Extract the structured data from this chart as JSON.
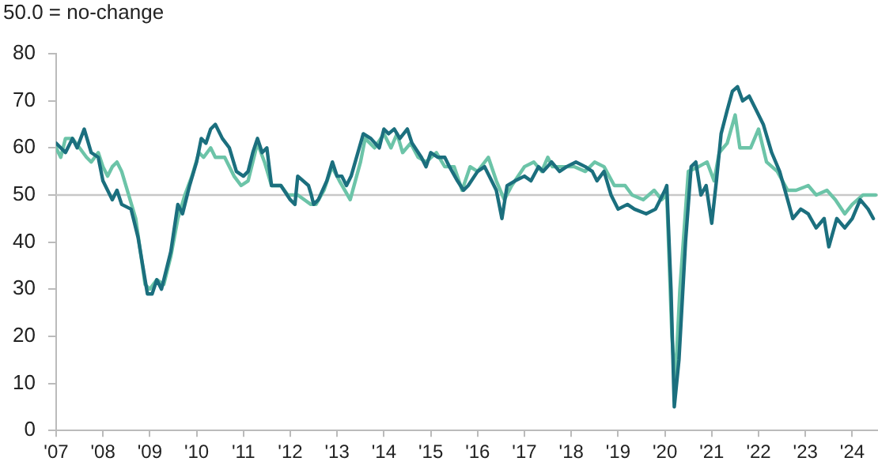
{
  "chart_data": {
    "type": "line",
    "annotations": [
      "50.0 = no-change"
    ],
    "xlim": [
      2007,
      2024.55
    ],
    "xticks": [
      {
        "value": 2007,
        "label": "'07"
      },
      {
        "value": 2008,
        "label": "'08"
      },
      {
        "value": 2009,
        "label": "'09"
      },
      {
        "value": 2010,
        "label": "'10"
      },
      {
        "value": 2011,
        "label": "'11"
      },
      {
        "value": 2012,
        "label": "'12"
      },
      {
        "value": 2013,
        "label": "'13"
      },
      {
        "value": 2014,
        "label": "'14"
      },
      {
        "value": 2015,
        "label": "'15"
      },
      {
        "value": 2016,
        "label": "'16"
      },
      {
        "value": 2017,
        "label": "'17"
      },
      {
        "value": 2018,
        "label": "'18"
      },
      {
        "value": 2019,
        "label": "'19"
      },
      {
        "value": 2020,
        "label": "'20"
      },
      {
        "value": 2021,
        "label": "'21"
      },
      {
        "value": 2022,
        "label": "'22"
      },
      {
        "value": 2023,
        "label": "'23"
      },
      {
        "value": 2024,
        "label": "'24"
      }
    ],
    "ylim": [
      0,
      80
    ],
    "yticks": [
      0,
      10,
      20,
      30,
      40,
      50,
      60,
      70,
      80
    ],
    "grid": false,
    "legend": false,
    "marker": "none",
    "line_style": "solid",
    "ref_lines": [
      {
        "axis": "y",
        "value": 50,
        "color": "#c8c8c8"
      }
    ],
    "series": [
      {
        "color": "#1b6f7e",
        "x": [
          2007,
          2007.2,
          2007.35,
          2007.45,
          2007.6,
          2007.75,
          2007.9,
          2008,
          2008.1,
          2008.2,
          2008.3,
          2008.4,
          2008.6,
          2008.75,
          2008.85,
          2008.95,
          2009.05,
          2009.15,
          2009.25,
          2009.45,
          2009.6,
          2009.7,
          2009.85,
          2010,
          2010.1,
          2010.2,
          2010.3,
          2010.4,
          2010.55,
          2010.7,
          2010.85,
          2011,
          2011.1,
          2011.2,
          2011.3,
          2011.4,
          2011.5,
          2011.6,
          2011.8,
          2012,
          2012.1,
          2012.16,
          2012.39,
          2012.45,
          2012.5,
          2012.6,
          2012.78,
          2012.9,
          2013,
          2013.1,
          2013.2,
          2013.3,
          2013.56,
          2013.72,
          2013.9,
          2014,
          2014.1,
          2014.22,
          2014.34,
          2014.5,
          2014.6,
          2014.8,
          2014.9,
          2015,
          2015.15,
          2015.3,
          2015.4,
          2015.57,
          2015.7,
          2015.8,
          2016,
          2016.15,
          2016.3,
          2016.4,
          2016.52,
          2016.63,
          2016.8,
          2017,
          2017.14,
          2017.3,
          2017.4,
          2017.58,
          2017.75,
          2017.9,
          2018.1,
          2018.3,
          2018.45,
          2018.55,
          2018.7,
          2018.85,
          2019,
          2019.2,
          2019.35,
          2019.6,
          2019.8,
          2020,
          2020.04,
          2020.13,
          2020.2,
          2020.3,
          2020.44,
          2020.56,
          2020.66,
          2020.77,
          2020.88,
          2021,
          2021.1,
          2021.2,
          2021.33,
          2021.44,
          2021.55,
          2021.66,
          2021.8,
          2021.95,
          2022.1,
          2022.28,
          2022.45,
          2022.62,
          2022.73,
          2022.9,
          2023.06,
          2023.23,
          2023.4,
          2023.5,
          2023.67,
          2023.84,
          2024,
          2024.17,
          2024.34,
          2024.45
        ],
        "values": [
          61,
          59,
          62,
          60,
          64,
          59,
          58,
          53,
          51,
          49,
          51,
          48,
          47,
          41,
          35,
          29,
          29,
          32,
          30,
          38,
          48,
          46,
          52,
          57,
          62,
          61,
          64,
          65,
          62,
          60,
          55,
          54,
          55,
          59,
          62,
          59,
          60,
          52,
          52,
          49,
          48,
          54,
          52,
          50,
          48,
          49,
          53,
          57,
          54,
          54,
          52,
          54,
          63,
          62,
          60,
          64,
          63,
          64,
          62,
          64,
          61,
          58,
          56,
          59,
          58,
          58,
          56,
          53,
          51,
          52,
          55,
          56,
          53,
          51,
          45,
          52,
          53,
          54,
          53,
          56,
          55,
          57,
          55,
          56,
          57,
          56,
          55,
          53,
          55,
          50,
          47,
          48,
          47,
          46,
          47,
          51,
          52,
          30,
          5,
          15,
          40,
          56,
          57,
          50,
          52,
          44,
          53,
          63,
          68,
          72,
          73,
          70,
          71,
          68,
          65,
          59,
          55,
          49,
          45,
          47,
          46,
          43,
          45,
          39,
          45,
          43,
          45,
          49,
          47,
          45
        ]
      },
      {
        "color": "#6cc4a8",
        "x": [
          2007,
          2007.1,
          2007.2,
          2007.35,
          2007.5,
          2007.65,
          2007.75,
          2007.9,
          2008,
          2008.1,
          2008.2,
          2008.3,
          2008.4,
          2008.55,
          2008.7,
          2008.8,
          2008.9,
          2009,
          2009.15,
          2009.3,
          2009.45,
          2009.6,
          2009.75,
          2009.9,
          2010.05,
          2010.15,
          2010.3,
          2010.4,
          2010.6,
          2010.8,
          2010.95,
          2011.1,
          2011.2,
          2011.3,
          2011.45,
          2011.6,
          2011.8,
          2011.95,
          2012.16,
          2012.44,
          2012.55,
          2012.72,
          2012.89,
          2013.05,
          2013.28,
          2013.5,
          2013.6,
          2013.8,
          2014,
          2014.15,
          2014.28,
          2014.4,
          2014.57,
          2014.73,
          2014.9,
          2015.12,
          2015.3,
          2015.5,
          2015.67,
          2015.84,
          2016,
          2016.23,
          2016.4,
          2016.57,
          2016.73,
          2017,
          2017.2,
          2017.37,
          2017.5,
          2017.6,
          2017.84,
          2018.07,
          2018.3,
          2018.5,
          2018.7,
          2018.92,
          2019.15,
          2019.3,
          2019.54,
          2019.77,
          2019.93,
          2020.04,
          2020.15,
          2020.22,
          2020.32,
          2020.5,
          2020.72,
          2020.9,
          2021.05,
          2021.16,
          2021.33,
          2021.5,
          2021.6,
          2021.83,
          2022,
          2022.17,
          2022.4,
          2022.62,
          2022.8,
          2023.06,
          2023.23,
          2023.46,
          2023.64,
          2023.84,
          2024,
          2024.23,
          2024.4,
          2024.5
        ],
        "values": [
          60,
          58,
          62,
          62,
          60,
          58,
          57,
          59,
          56,
          54,
          56,
          57,
          55,
          50,
          45,
          38,
          31,
          30,
          32,
          31,
          37,
          45,
          50,
          54,
          59,
          58,
          60,
          58,
          58,
          54,
          52,
          53,
          57,
          61,
          57,
          52,
          52,
          50,
          50,
          48,
          48,
          51,
          56,
          53,
          49,
          57,
          62,
          60,
          63,
          60,
          63,
          59,
          61,
          58,
          57,
          59,
          56,
          56,
          51,
          56,
          55,
          58,
          53,
          49,
          52,
          56,
          57,
          55,
          58,
          56,
          56,
          56,
          55,
          57,
          56,
          52,
          52,
          50,
          49,
          51,
          49,
          50,
          20,
          10,
          30,
          55,
          56,
          57,
          53,
          59,
          61,
          67,
          60,
          60,
          64,
          57,
          55,
          51,
          51,
          52,
          50,
          51,
          49,
          46,
          48,
          50,
          50,
          50
        ]
      }
    ]
  }
}
